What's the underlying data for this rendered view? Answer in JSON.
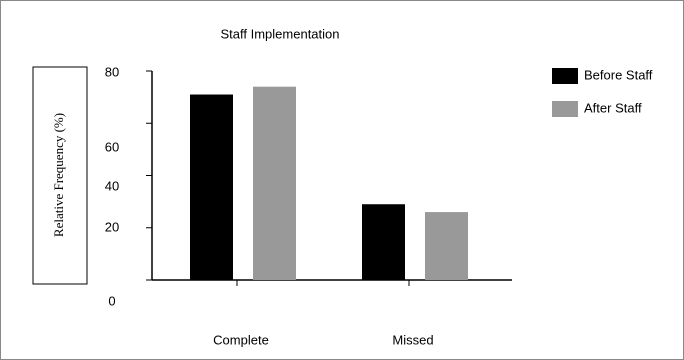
{
  "chart_data": {
    "type": "bar",
    "title": "Staff Implementation",
    "ylabel": "Relative Frequency (%)",
    "categories": [
      "Complete",
      "Missed"
    ],
    "series": [
      {
        "name": "Before Staff",
        "color": "#000000",
        "values": [
          71,
          29
        ]
      },
      {
        "name": "After Staff",
        "color": "#999999",
        "values": [
          74,
          26
        ]
      }
    ],
    "ylim": [
      0,
      80
    ],
    "yticks": [
      0,
      20,
      40,
      60,
      80
    ],
    "legend": "right"
  }
}
